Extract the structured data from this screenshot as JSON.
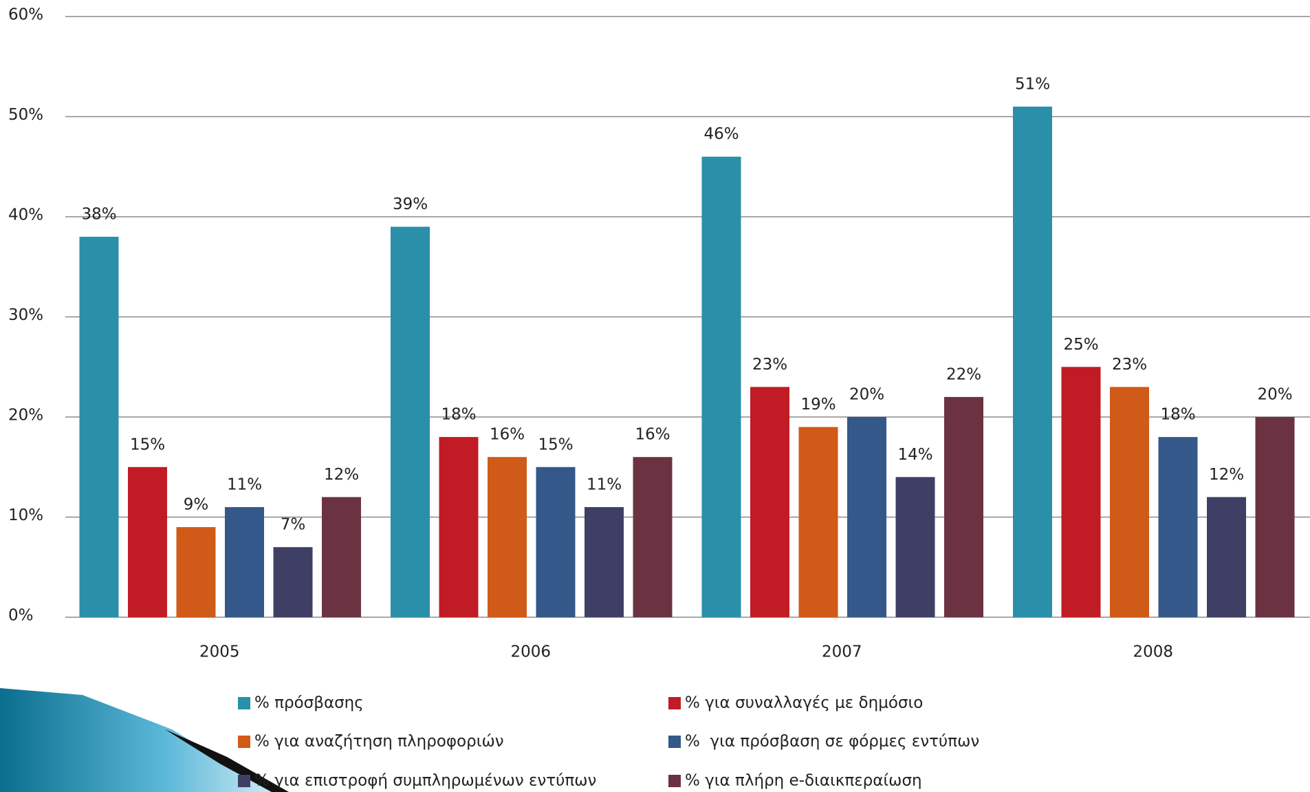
{
  "chart_data": {
    "type": "bar",
    "categories": [
      "2005",
      "2006",
      "2007",
      "2008"
    ],
    "series": [
      {
        "name": "% πρόσβασης",
        "color": "#2a8fa9",
        "values": [
          38,
          39,
          46,
          51
        ],
        "value_labels": [
          "38%",
          "39%",
          "46%",
          "51%"
        ]
      },
      {
        "name": "% για συναλλαγές με δημόσιο",
        "color": "#c11b25",
        "values": [
          15,
          18,
          23,
          25
        ],
        "value_labels": [
          "15%",
          "18%",
          "23%",
          "25%"
        ]
      },
      {
        "name": "% για αναζήτηση πληροφοριών",
        "color": "#d05a18",
        "values": [
          9,
          16,
          19,
          23
        ],
        "value_labels": [
          "9%",
          "16%",
          "19%",
          "23%"
        ]
      },
      {
        "name": "%  για πρόσβαση σε φόρμες εντύπων",
        "color": "#345889",
        "values": [
          11,
          15,
          20,
          18
        ],
        "value_labels": [
          "11%",
          "15%",
          "20%",
          "18%"
        ]
      },
      {
        "name": "% για επιστροφή συμπληρωμένων εντύπων",
        "color": "#3f3f66",
        "values": [
          7,
          11,
          14,
          12
        ],
        "value_labels": [
          "7%",
          "11%",
          "14%",
          "12%"
        ]
      },
      {
        "name": "% για πλήρη e-διαικπεραίωση",
        "color": "#6b3341",
        "values": [
          12,
          16,
          22,
          20
        ],
        "value_labels": [
          "12%",
          "16%",
          "22%",
          "20%"
        ]
      }
    ],
    "ylim": [
      0,
      60
    ],
    "yticks": [
      {
        "value": 0,
        "label": "0%"
      },
      {
        "value": 10,
        "label": "10%"
      },
      {
        "value": 20,
        "label": "20%"
      },
      {
        "value": 30,
        "label": "30%"
      },
      {
        "value": 40,
        "label": "40%"
      },
      {
        "value": 50,
        "label": "50%"
      },
      {
        "value": 60,
        "label": "60%"
      }
    ],
    "grid": true
  }
}
